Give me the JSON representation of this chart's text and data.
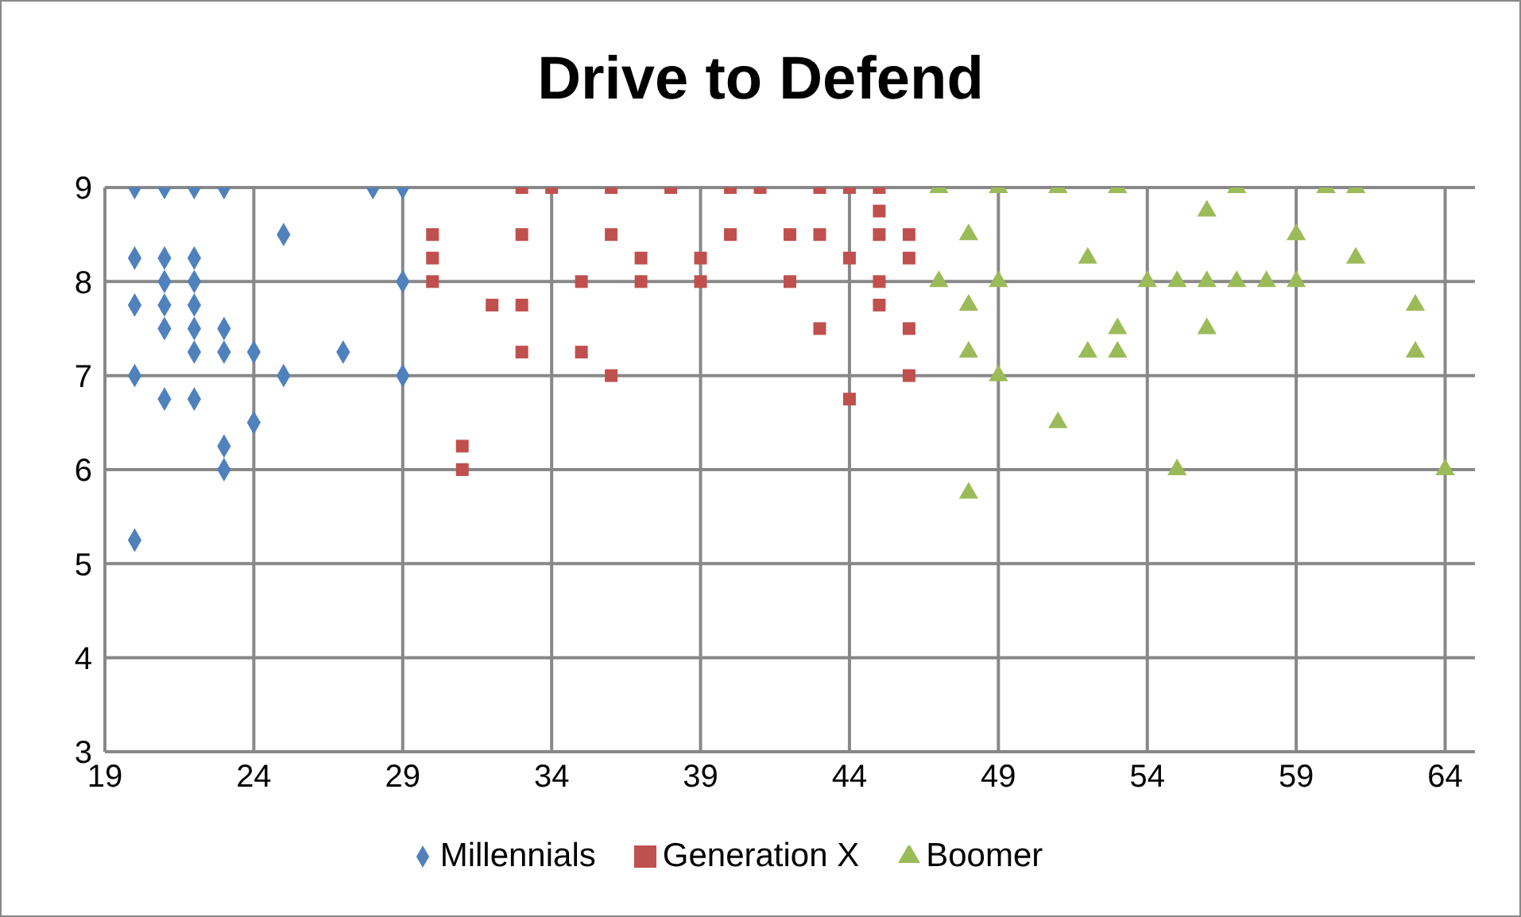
{
  "chart_data": {
    "type": "scatter",
    "title": "Drive to Defend",
    "xlim": [
      19,
      65
    ],
    "xticks": [
      19,
      24,
      29,
      34,
      39,
      44,
      49,
      54,
      59,
      64
    ],
    "ylim": [
      3,
      9
    ],
    "yticks": [
      3,
      4,
      5,
      6,
      7,
      8,
      9
    ],
    "grid": true,
    "legend": "bottom",
    "series": [
      {
        "name": "Millennials",
        "color": "#4f81bd",
        "marker": "diamond",
        "x": [
          20,
          21,
          22,
          23,
          28,
          29,
          25,
          20,
          21,
          22,
          21,
          22,
          29,
          20,
          21,
          22,
          21,
          22,
          23,
          22,
          23,
          24,
          27,
          20,
          25,
          29,
          21,
          22,
          24,
          23,
          23,
          20
        ],
        "values": [
          9,
          9,
          9,
          9,
          9,
          9,
          8.5,
          8.25,
          8.25,
          8.25,
          8,
          8,
          8,
          7.75,
          7.75,
          7.75,
          7.5,
          7.5,
          7.5,
          7.25,
          7.25,
          7.25,
          7.25,
          7,
          7,
          7,
          6.75,
          6.75,
          6.5,
          6.25,
          6,
          5.25
        ]
      },
      {
        "name": "Generation X",
        "color": "#c0504d",
        "marker": "square",
        "x": [
          33,
          34,
          36,
          38,
          40,
          41,
          43,
          44,
          45,
          45,
          30,
          33,
          36,
          40,
          42,
          43,
          45,
          46,
          30,
          37,
          39,
          44,
          46,
          30,
          35,
          37,
          39,
          42,
          45,
          32,
          33,
          45,
          43,
          46,
          33,
          35,
          36,
          46,
          44,
          31,
          31
        ],
        "values": [
          9,
          9,
          9,
          9,
          9,
          9,
          9,
          9,
          9,
          8.75,
          8.5,
          8.5,
          8.5,
          8.5,
          8.5,
          8.5,
          8.5,
          8.5,
          8.25,
          8.25,
          8.25,
          8.25,
          8.25,
          8,
          8,
          8,
          8,
          8,
          8,
          7.75,
          7.75,
          7.75,
          7.5,
          7.5,
          7.25,
          7.25,
          7,
          7,
          6.75,
          6.25,
          6
        ]
      },
      {
        "name": "Boomer",
        "color": "#9bbb59",
        "marker": "triangle",
        "x": [
          47,
          49,
          51,
          53,
          57,
          60,
          61,
          56,
          48,
          59,
          52,
          61,
          47,
          49,
          54,
          55,
          56,
          57,
          58,
          59,
          48,
          63,
          53,
          56,
          48,
          52,
          53,
          63,
          49,
          51,
          55,
          64,
          48
        ],
        "values": [
          9,
          9,
          9,
          9,
          9,
          9,
          9,
          8.75,
          8.5,
          8.5,
          8.25,
          8.25,
          8,
          8,
          8,
          8,
          8,
          8,
          8,
          8,
          7.75,
          7.75,
          7.5,
          7.5,
          7.25,
          7.25,
          7.25,
          7.25,
          7,
          6.5,
          6,
          6,
          5.75
        ]
      }
    ]
  }
}
